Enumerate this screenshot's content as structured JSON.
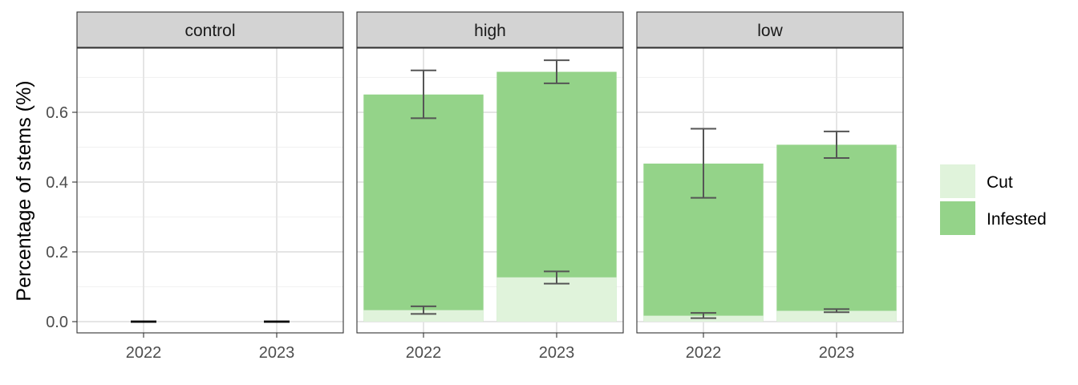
{
  "chart_data": {
    "type": "bar",
    "stacked": true,
    "facet_variable": "treatment",
    "ylabel": "Percentage of stems (%)",
    "xlabel": "",
    "ylim": [
      -0.03,
      0.79
    ],
    "yticks": [
      0.0,
      0.2,
      0.4,
      0.6
    ],
    "ytick_labels": [
      "0.0",
      "0.2",
      "0.4",
      "0.6"
    ],
    "grid": true,
    "legend_position": "right",
    "colors": {
      "Cut": "#e0f3db",
      "Infested": "#94d389",
      "error_bar": "#555555",
      "strip_bg": "#d3d3d3",
      "grid_major": "#e5e5e5",
      "grid_minor": "#f2f2f2"
    },
    "legend": [
      {
        "name": "Cut",
        "color": "#e0f3db"
      },
      {
        "name": "Infested",
        "color": "#94d389"
      }
    ],
    "facets": [
      {
        "title": "control",
        "categories": [
          "2022",
          "2023"
        ],
        "series": [
          {
            "name": "Cut",
            "values": [
              0,
              0
            ],
            "err_low": [
              0,
              0
            ],
            "err_high": [
              0,
              0
            ]
          },
          {
            "name": "Infested",
            "values": [
              0,
              0
            ],
            "err_low": [
              0,
              0
            ],
            "err_high": [
              0,
              0
            ]
          }
        ]
      },
      {
        "title": "high",
        "categories": [
          "2022",
          "2023"
        ],
        "series": [
          {
            "name": "Cut",
            "values": [
              0.033,
              0.127
            ],
            "err_low": [
              0.022,
              0.109
            ],
            "err_high": [
              0.044,
              0.144
            ]
          },
          {
            "name": "Infested",
            "values": [
              0.651,
              0.716
            ],
            "err_low": [
              0.583,
              0.683
            ],
            "err_high": [
              0.72,
              0.749
            ]
          }
        ]
      },
      {
        "title": "low",
        "categories": [
          "2022",
          "2023"
        ],
        "series": [
          {
            "name": "Cut",
            "values": [
              0.017,
              0.031
            ],
            "err_low": [
              0.01,
              0.027
            ],
            "err_high": [
              0.025,
              0.036
            ]
          },
          {
            "name": "Infested",
            "values": [
              0.453,
              0.507
            ],
            "err_low": [
              0.355,
              0.469
            ],
            "err_high": [
              0.553,
              0.545
            ]
          }
        ]
      }
    ]
  }
}
